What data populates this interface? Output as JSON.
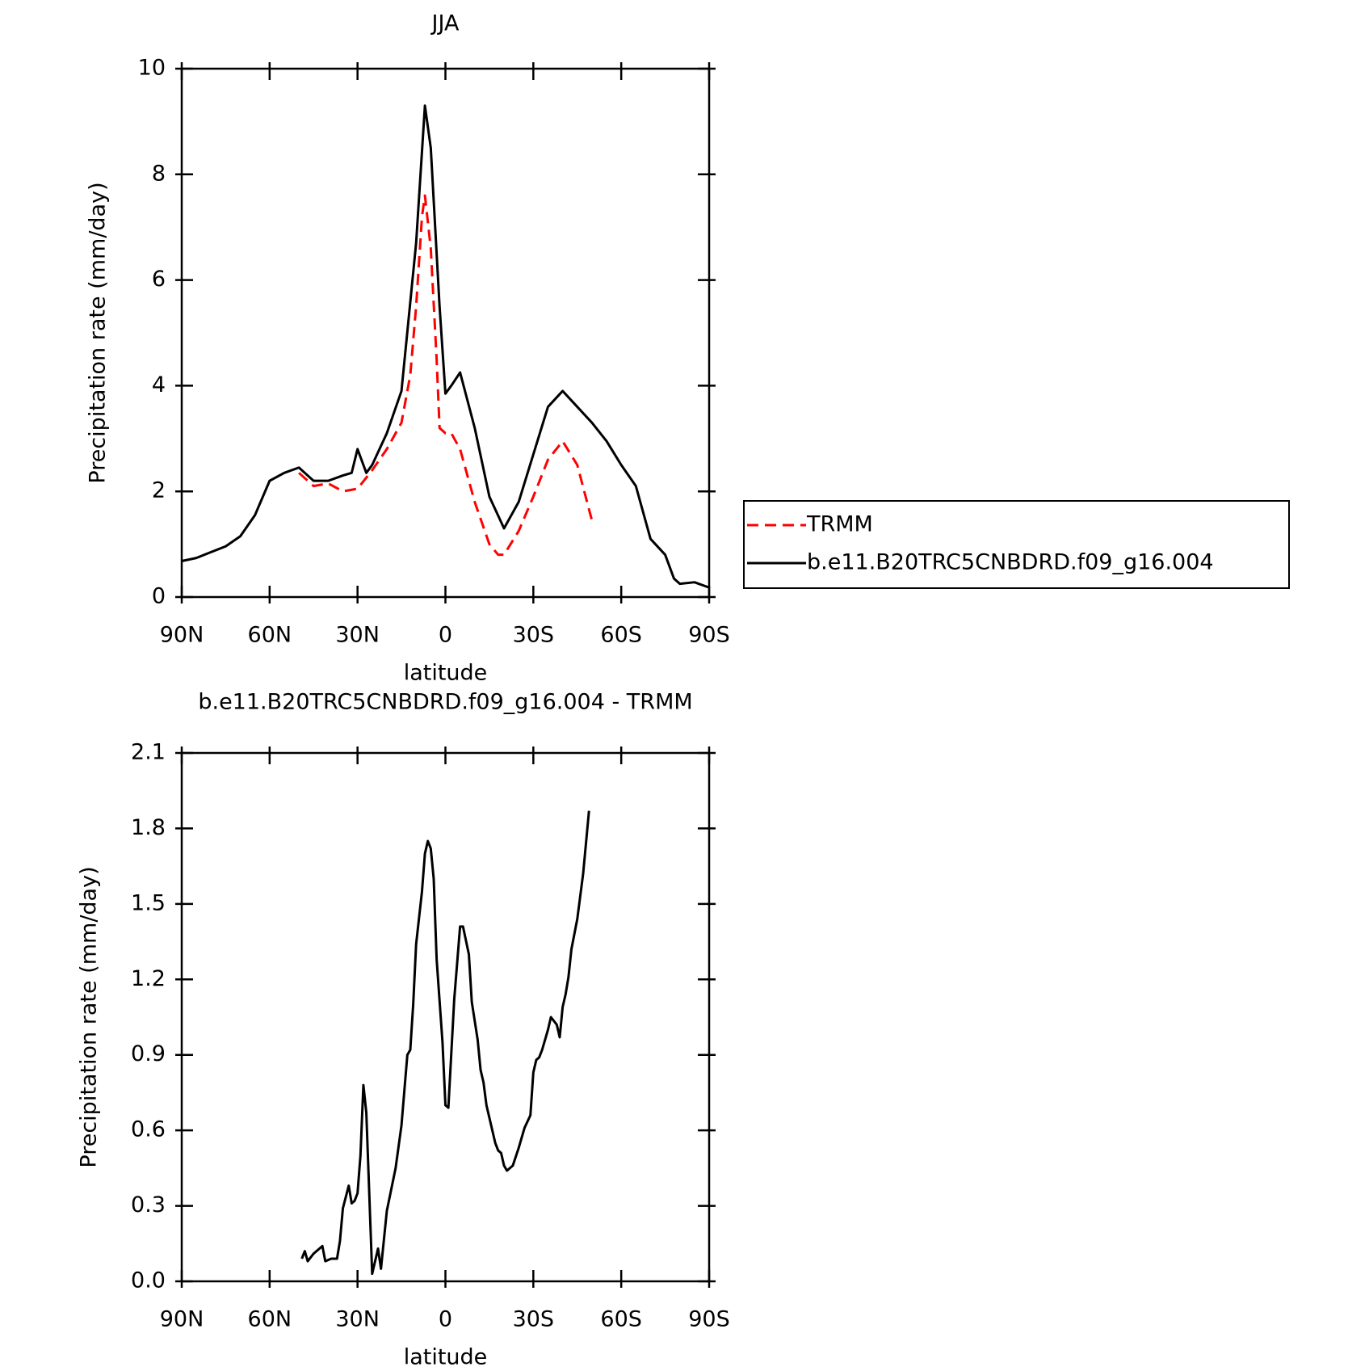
{
  "chart_data": [
    {
      "type": "line",
      "title": "JJA",
      "xlabel": "latitude",
      "ylabel": "Precipitation rate (mm/day)",
      "xlim": [
        90,
        -90
      ],
      "xticks": [
        {
          "value": 90,
          "label": "90N"
        },
        {
          "value": 60,
          "label": "60N"
        },
        {
          "value": 30,
          "label": "30N"
        },
        0,
        {
          "value": -30,
          "label": "30S"
        },
        {
          "value": -60,
          "label": "60S"
        },
        {
          "value": -90,
          "label": "90S"
        }
      ],
      "ylim": [
        0,
        10
      ],
      "yticks": [
        0,
        2,
        4,
        6,
        8,
        10
      ],
      "legend": "outside-right",
      "series": [
        {
          "name": "TRMM",
          "color": "#ff0000",
          "dashed": true,
          "x": [
            50,
            45,
            40,
            35,
            30,
            25,
            20,
            15,
            12,
            10,
            8,
            7,
            5,
            3,
            2,
            0,
            -2,
            -5,
            -10,
            -15,
            -18,
            -20,
            -25,
            -30,
            -35,
            -40,
            -45,
            -50
          ],
          "values": [
            2.35,
            2.1,
            2.15,
            2.0,
            2.05,
            2.4,
            2.8,
            3.3,
            4.2,
            5.5,
            7.2,
            7.6,
            6.6,
            4.5,
            3.2,
            3.1,
            3.1,
            2.8,
            1.8,
            1.0,
            0.8,
            0.8,
            1.25,
            1.9,
            2.6,
            2.95,
            2.5,
            1.45
          ]
        },
        {
          "name": "b.e11.B20TRC5CNBDRD.f09_g16.004",
          "color": "#000000",
          "dashed": false,
          "x": [
            90,
            85,
            80,
            75,
            70,
            65,
            60,
            55,
            50,
            45,
            40,
            35,
            32,
            30,
            27,
            25,
            20,
            15,
            10,
            7,
            5,
            2,
            0,
            -2,
            -5,
            -10,
            -15,
            -20,
            -25,
            -30,
            -35,
            -40,
            -45,
            -50,
            -55,
            -60,
            -65,
            -70,
            -75,
            -78,
            -80,
            -85,
            -90
          ],
          "values": [
            0.68,
            0.74,
            0.85,
            0.96,
            1.15,
            1.55,
            2.2,
            2.35,
            2.45,
            2.2,
            2.2,
            2.3,
            2.35,
            2.8,
            2.35,
            2.5,
            3.1,
            3.9,
            6.7,
            9.3,
            8.5,
            5.5,
            3.85,
            4.0,
            4.25,
            3.2,
            1.9,
            1.3,
            1.8,
            2.7,
            3.6,
            3.9,
            3.6,
            3.3,
            2.95,
            2.5,
            2.1,
            1.1,
            0.8,
            0.35,
            0.25,
            0.28,
            0.18
          ]
        }
      ]
    },
    {
      "type": "line",
      "title": "b.e11.B20TRC5CNBDRD.f09_g16.004 - TRMM",
      "xlabel": "latitude",
      "ylabel": "Precipitation rate (mm/day)",
      "xlim": [
        90,
        -90
      ],
      "xticks": [
        {
          "value": 90,
          "label": "90N"
        },
        {
          "value": 60,
          "label": "60N"
        },
        {
          "value": 30,
          "label": "30N"
        },
        0,
        {
          "value": -30,
          "label": "30S"
        },
        {
          "value": -60,
          "label": "60S"
        },
        {
          "value": -90,
          "label": "90S"
        }
      ],
      "ylim": [
        0,
        2.1
      ],
      "yticks": [
        {
          "value": 0,
          "label": "0.0"
        },
        0.3,
        0.6,
        0.9,
        1.2,
        1.5,
        1.8,
        2.1
      ],
      "series": [
        {
          "color": "#000000",
          "dashed": false,
          "x": [
            49,
            48,
            47,
            45,
            42,
            41,
            39,
            37,
            36,
            35,
            33,
            32,
            31,
            30,
            29,
            28,
            27,
            25,
            23,
            22,
            20,
            17,
            15,
            13,
            12,
            11,
            10,
            8,
            7,
            6,
            5,
            4,
            3,
            1,
            0,
            -1,
            -3,
            -5,
            -6,
            -8,
            -9,
            -11,
            -12,
            -13,
            -14,
            -17,
            -18,
            -19,
            -20,
            -21,
            -23,
            -25,
            -27,
            -29,
            -30,
            -31,
            -32,
            -33,
            -35,
            -36,
            -38,
            -39,
            -40,
            -41,
            -42,
            -43,
            -45,
            -47,
            -49
          ],
          "values": [
            0.09,
            0.12,
            0.08,
            0.11,
            0.14,
            0.08,
            0.09,
            0.09,
            0.16,
            0.29,
            0.38,
            0.31,
            0.32,
            0.35,
            0.5,
            0.78,
            0.67,
            0.03,
            0.13,
            0.05,
            0.28,
            0.45,
            0.62,
            0.9,
            0.92,
            1.1,
            1.34,
            1.55,
            1.7,
            1.75,
            1.72,
            1.6,
            1.28,
            0.95,
            0.7,
            0.69,
            1.12,
            1.41,
            1.41,
            1.3,
            1.11,
            0.96,
            0.84,
            0.79,
            0.7,
            0.55,
            0.52,
            0.51,
            0.46,
            0.44,
            0.46,
            0.53,
            0.61,
            0.66,
            0.83,
            0.88,
            0.89,
            0.92,
            1.0,
            1.05,
            1.02,
            0.97,
            1.09,
            1.14,
            1.21,
            1.32,
            1.44,
            1.62,
            1.87
          ]
        }
      ]
    }
  ]
}
